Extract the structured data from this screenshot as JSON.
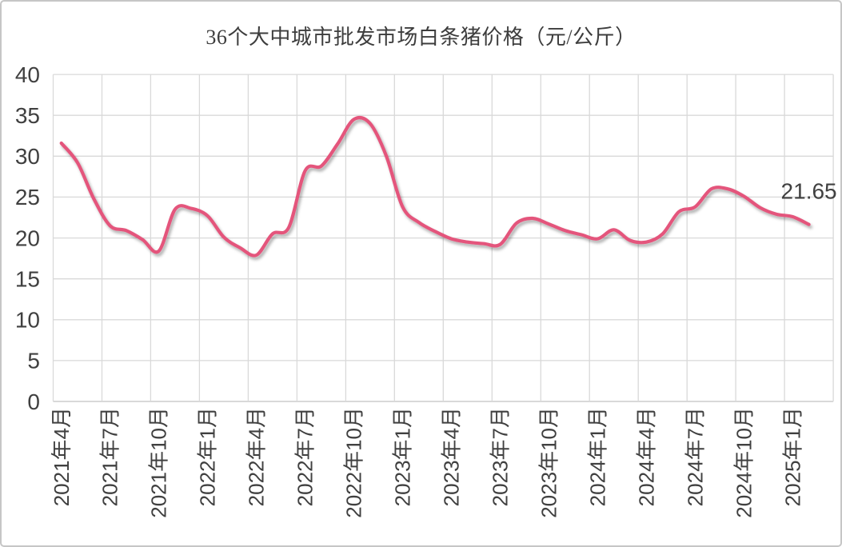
{
  "chart_data": {
    "type": "line",
    "title": "36个大中城市批发市场白条猪价格（元/公斤）",
    "unit": "元/公斤",
    "ylim": [
      0,
      40
    ],
    "y_ticks": [
      "0",
      "5",
      "10",
      "15",
      "20",
      "25",
      "30",
      "35",
      "40"
    ],
    "x_tick_labels": [
      "2021年4月",
      "2021年7月",
      "2021年10月",
      "2022年1月",
      "2022年4月",
      "2022年7月",
      "2022年10月",
      "2023年1月",
      "2023年4月",
      "2023年7月",
      "2023年10月",
      "2024年1月",
      "2024年4月",
      "2024年7月",
      "2024年10月",
      "2025年1月"
    ],
    "x_tick_interval_months": 3,
    "grid": "on",
    "legend": "none",
    "smooth": true,
    "line_color": "#e4557c",
    "grid_color": "#d9d9d9",
    "axis_color": "#c2c2c2",
    "label_color": "#404040",
    "last_point_label": "21.65",
    "categories": [
      "2021年4月",
      "2021年5月",
      "2021年6月",
      "2021年7月",
      "2021年8月",
      "2021年9月",
      "2021年10月",
      "2021年11月",
      "2021年12月",
      "2022年1月",
      "2022年2月",
      "2022年3月",
      "2022年4月",
      "2022年5月",
      "2022年6月",
      "2022年7月",
      "2022年8月",
      "2022年9月",
      "2022年10月",
      "2022年11月",
      "2022年12月",
      "2023年1月",
      "2023年2月",
      "2023年3月",
      "2023年4月",
      "2023年5月",
      "2023年6月",
      "2023年7月",
      "2023年8月",
      "2023年9月",
      "2023年10月",
      "2023年11月",
      "2023年12月",
      "2024年1月",
      "2024年2月",
      "2024年3月",
      "2024年4月",
      "2024年5月",
      "2024年6月",
      "2024年7月",
      "2024年8月",
      "2024年9月",
      "2024年10月",
      "2024年11月",
      "2024年12月",
      "2025年1月",
      "2025年2月"
    ],
    "values": [
      31.6,
      29.2,
      24.8,
      21.5,
      20.9,
      19.8,
      18.4,
      23.5,
      23.6,
      22.7,
      20.1,
      18.8,
      17.9,
      20.5,
      21.3,
      28.2,
      28.8,
      31.5,
      34.5,
      34.0,
      30.0,
      23.8,
      21.9,
      20.8,
      19.9,
      19.5,
      19.3,
      19.2,
      21.8,
      22.4,
      21.7,
      20.9,
      20.4,
      19.9,
      21.0,
      19.7,
      19.5,
      20.5,
      23.2,
      23.8,
      26.0,
      26.0,
      25.1,
      23.7,
      22.9,
      22.6,
      21.65
    ]
  }
}
